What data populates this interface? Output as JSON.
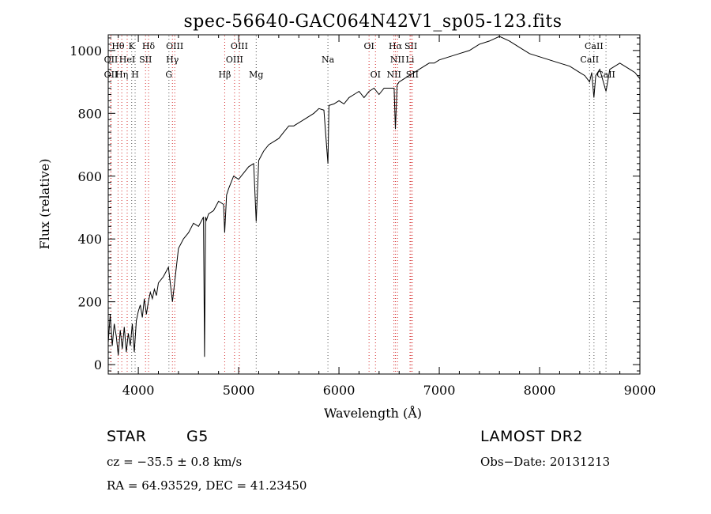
{
  "chart_data": {
    "type": "line",
    "title": "spec-56640-GAC064N42V1_sp05-123.fits",
    "xlabel": "Wavelength (Å)",
    "ylabel": "Flux (relative)",
    "xlim": [
      3700,
      9000
    ],
    "ylim": [
      -30,
      1050
    ],
    "xticks": [
      4000,
      5000,
      6000,
      7000,
      8000,
      9000
    ],
    "yticks": [
      0,
      200,
      400,
      600,
      800,
      1000
    ],
    "grid": false,
    "series": [
      {
        "x": [
          3700,
          3720,
          3740,
          3760,
          3780,
          3800,
          3820,
          3840,
          3860,
          3880,
          3900,
          3920,
          3940,
          3960,
          3980,
          4000,
          4020,
          4040,
          4060,
          4080,
          4100,
          4120,
          4140,
          4160,
          4180,
          4200,
          4250,
          4300,
          4340,
          4400,
          4450,
          4500,
          4550,
          4600,
          4650,
          4660,
          4670,
          4680,
          4700,
          4750,
          4800,
          4850,
          4861,
          4880,
          4900,
          4950,
          5000,
          5050,
          5100,
          5150,
          5175,
          5200,
          5250,
          5300,
          5350,
          5400,
          5450,
          5500,
          5550,
          5600,
          5650,
          5700,
          5750,
          5800,
          5850,
          5890,
          5900,
          5950,
          6000,
          6050,
          6100,
          6150,
          6200,
          6250,
          6300,
          6350,
          6400,
          6450,
          6500,
          6550,
          6563,
          6580,
          6600,
          6650,
          6700,
          6750,
          6800,
          6850,
          6900,
          6950,
          7000,
          7100,
          7200,
          7300,
          7400,
          7500,
          7600,
          7700,
          7800,
          7900,
          8000,
          8100,
          8200,
          8300,
          8400,
          8450,
          8498,
          8520,
          8542,
          8560,
          8600,
          8662,
          8700,
          8800,
          8900,
          8950,
          9000
        ],
        "y": [
          70,
          160,
          60,
          130,
          90,
          30,
          110,
          50,
          120,
          40,
          100,
          60,
          130,
          40,
          140,
          170,
          190,
          150,
          210,
          160,
          200,
          230,
          210,
          240,
          220,
          260,
          280,
          310,
          200,
          370,
          400,
          420,
          450,
          440,
          470,
          25,
          470,
          460,
          480,
          490,
          520,
          510,
          420,
          540,
          560,
          600,
          590,
          610,
          630,
          640,
          455,
          650,
          680,
          700,
          710,
          720,
          740,
          760,
          760,
          770,
          780,
          790,
          800,
          815,
          810,
          640,
          825,
          830,
          840,
          830,
          850,
          860,
          870,
          850,
          870,
          880,
          860,
          880,
          880,
          880,
          750,
          890,
          900,
          910,
          920,
          930,
          940,
          950,
          960,
          960,
          970,
          980,
          990,
          1000,
          1020,
          1030,
          1045,
          1030,
          1010,
          990,
          980,
          970,
          960,
          950,
          930,
          920,
          900,
          930,
          850,
          920,
          940,
          870,
          940,
          960,
          940,
          930,
          910
        ]
      }
    ],
    "line_markers": [
      {
        "label": "Hθ",
        "x": 3798,
        "row": 1
      },
      {
        "label": "K",
        "x": 3934,
        "row": 1
      },
      {
        "label": "Hδ",
        "x": 4102,
        "row": 1
      },
      {
        "label": "OIII",
        "x": 4363,
        "row": 1
      },
      {
        "label": "OIII",
        "x": 5007,
        "row": 1
      },
      {
        "label": "OI",
        "x": 6300,
        "row": 1
      },
      {
        "label": "Hα",
        "x": 6563,
        "row": 1
      },
      {
        "label": "SII",
        "x": 6717,
        "row": 1
      },
      {
        "label": "CaII",
        "x": 8542,
        "row": 1
      },
      {
        "label": "OII",
        "x": 3727,
        "row": 2
      },
      {
        "label": "HeI",
        "x": 3889,
        "row": 2
      },
      {
        "label": "SII",
        "x": 4072,
        "row": 2
      },
      {
        "label": "Hγ",
        "x": 4340,
        "row": 2
      },
      {
        "label": "OIII",
        "x": 4959,
        "row": 2
      },
      {
        "label": "Na",
        "x": 5890,
        "row": 2
      },
      {
        "label": "NII",
        "x": 6583,
        "row": 2
      },
      {
        "label": "Li",
        "x": 6708,
        "row": 2
      },
      {
        "label": "CaII",
        "x": 8498,
        "row": 2
      },
      {
        "label": "OII",
        "x": 3727,
        "row": 3
      },
      {
        "label": "Hη",
        "x": 3835,
        "row": 3
      },
      {
        "label": "H",
        "x": 3968,
        "row": 3
      },
      {
        "label": "G",
        "x": 4305,
        "row": 3
      },
      {
        "label": "Hβ",
        "x": 4861,
        "row": 3
      },
      {
        "label": "Mg",
        "x": 5175,
        "row": 3
      },
      {
        "label": "OI",
        "x": 6364,
        "row": 3
      },
      {
        "label": "NII",
        "x": 6548,
        "row": 3
      },
      {
        "label": "SII",
        "x": 6731,
        "row": 3
      },
      {
        "label": "CaII",
        "x": 8662,
        "row": 3
      }
    ]
  },
  "info": {
    "object_type": "STAR",
    "subclass": "G5",
    "survey": "LAMOST DR2",
    "redshift": "cz = −35.5 ± 0.8 km/s",
    "obs_date": "Obs−Date: 20131213",
    "coords": "RA =  64.93529, DEC =  41.23450"
  },
  "colors": {
    "spectrum": "#000000",
    "emission_marker": "#cc0000",
    "absorption_marker": "#333333",
    "background": "#ffffff"
  }
}
